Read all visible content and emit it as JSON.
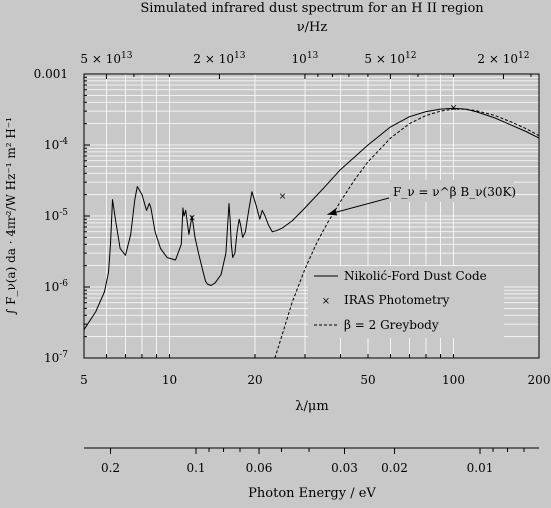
{
  "chart_data": {
    "type": "line",
    "title": "Simulated infrared dust spectrum for an H II region",
    "top_axis": {
      "label": "ν/Hz",
      "ticks": [
        {
          "value": 50000000000000.0,
          "label": "5 × 10^13"
        },
        {
          "value": 20000000000000.0,
          "label": "2 × 10^13"
        },
        {
          "value": 10000000000000.0,
          "label": "10^13"
        },
        {
          "value": 5000000000000.0,
          "label": "5 × 10^12"
        },
        {
          "value": 2000000000000.0,
          "label": "2 × 10^12"
        }
      ]
    },
    "xlabel": "λ/μm",
    "x_scale": "log",
    "xlim": [
      5,
      200
    ],
    "x_ticks": [
      5,
      10,
      20,
      50,
      100,
      200
    ],
    "x_tick_labels": [
      "5",
      "10",
      "20",
      "50",
      "100",
      "200"
    ],
    "ylabel": "∫ F_ν(a) da · 4πr²/W Hz⁻¹ m² H⁻¹",
    "y_scale": "log",
    "ylim": [
      1e-07,
      0.001
    ],
    "y_ticks": [
      1e-07,
      1e-06,
      1e-05,
      0.0001,
      0.001
    ],
    "y_tick_labels": [
      "10^-7",
      "10^-6",
      "10^-5",
      "10^-4",
      "0.001"
    ],
    "grid": true,
    "legend_position": "right",
    "series": [
      {
        "name": "Nikolić-Ford Dust Code",
        "style": "solid",
        "x": [
          5,
          5.5,
          5.9,
          6.1,
          6.2,
          6.3,
          6.45,
          6.7,
          7.0,
          7.3,
          7.55,
          7.7,
          8.0,
          8.3,
          8.5,
          8.6,
          8.9,
          9.3,
          9.8,
          10.5,
          11.0,
          11.15,
          11.25,
          11.4,
          11.7,
          12.0,
          12.3,
          12.7,
          13.1,
          13.4,
          13.6,
          14.0,
          14.5,
          15.2,
          15.8,
          16.2,
          16.35,
          16.5,
          16.7,
          17.0,
          17.3,
          17.6,
          17.8,
          18.1,
          18.5,
          19.0,
          19.5,
          20.2,
          20.8,
          21.2,
          21.7,
          22.3,
          23.0,
          23.8,
          25.0,
          27.0,
          30.0,
          35.0,
          40.0,
          50.0,
          60.0,
          70.0,
          80.0,
          90.0,
          100.0,
          110.0,
          120.0,
          140.0,
          160.0,
          180.0,
          200.0
        ],
        "y": [
          2.5e-07,
          4.5e-07,
          8.5e-07,
          1.6e-06,
          4e-06,
          1.7e-05,
          9e-06,
          3.5e-06,
          2.8e-06,
          5.5e-06,
          1.7e-05,
          2.6e-05,
          2e-05,
          1.2e-05,
          1.5e-05,
          1.3e-05,
          6e-06,
          3.5e-06,
          2.6e-06,
          2.4e-06,
          4e-06,
          1.3e-05,
          1e-05,
          1.2e-05,
          5.5e-06,
          1e-05,
          5e-06,
          2.8e-06,
          1.7e-06,
          1.2e-06,
          1.1e-06,
          1.05e-06,
          1.15e-06,
          1.5e-06,
          3e-06,
          1.5e-05,
          9e-06,
          4e-06,
          2.6e-06,
          3e-06,
          6e-06,
          9e-06,
          7.5e-06,
          5e-06,
          6e-06,
          1.2e-05,
          2.2e-05,
          1.4e-05,
          9e-06,
          1.2e-05,
          1e-05,
          7.5e-06,
          6e-06,
          6.2e-06,
          6.8e-06,
          8.5e-06,
          1.3e-05,
          2.5e-05,
          4.5e-05,
          0.0001,
          0.00018,
          0.00025,
          0.000295,
          0.00032,
          0.00033,
          0.00032,
          0.000295,
          0.00024,
          0.00019,
          0.000155,
          0.000125
        ]
      },
      {
        "name": "IRAS Photometry",
        "style": "marker-x",
        "x": [
          12,
          25,
          100
        ],
        "y": [
          9.5e-06,
          1.9e-05,
          0.00034
        ]
      },
      {
        "name": "β = 2 Greybody",
        "style": "dashed",
        "x": [
          23.5,
          25,
          27,
          30,
          33,
          36,
          40,
          45,
          50,
          60,
          70,
          80,
          90,
          100,
          110,
          120,
          140,
          160,
          180,
          200
        ],
        "y": [
          1e-07,
          2.2e-07,
          6e-07,
          1.8e-06,
          4.2e-06,
          8e-06,
          1.6e-05,
          3.3e-05,
          5.8e-05,
          0.000125,
          0.0002,
          0.00026,
          0.0003,
          0.00032,
          0.00032,
          0.000305,
          0.00026,
          0.00021,
          0.00017,
          0.000135
        ]
      }
    ],
    "annotations": [
      {
        "text": "F_ν = ν^β B_ν(30K)",
        "arrow_to": {
          "x": 36,
          "y": 1.05e-05
        }
      }
    ],
    "bottom_axis": {
      "label": "Photon Energy / eV",
      "ticks": [
        {
          "value": 0.2,
          "label": "0.2"
        },
        {
          "value": 0.1,
          "label": "0.1"
        },
        {
          "value": 0.06,
          "label": "0.06"
        },
        {
          "value": 0.03,
          "label": "0.03"
        },
        {
          "value": 0.02,
          "label": "0.02"
        },
        {
          "value": 0.01,
          "label": "0.01"
        }
      ]
    }
  }
}
